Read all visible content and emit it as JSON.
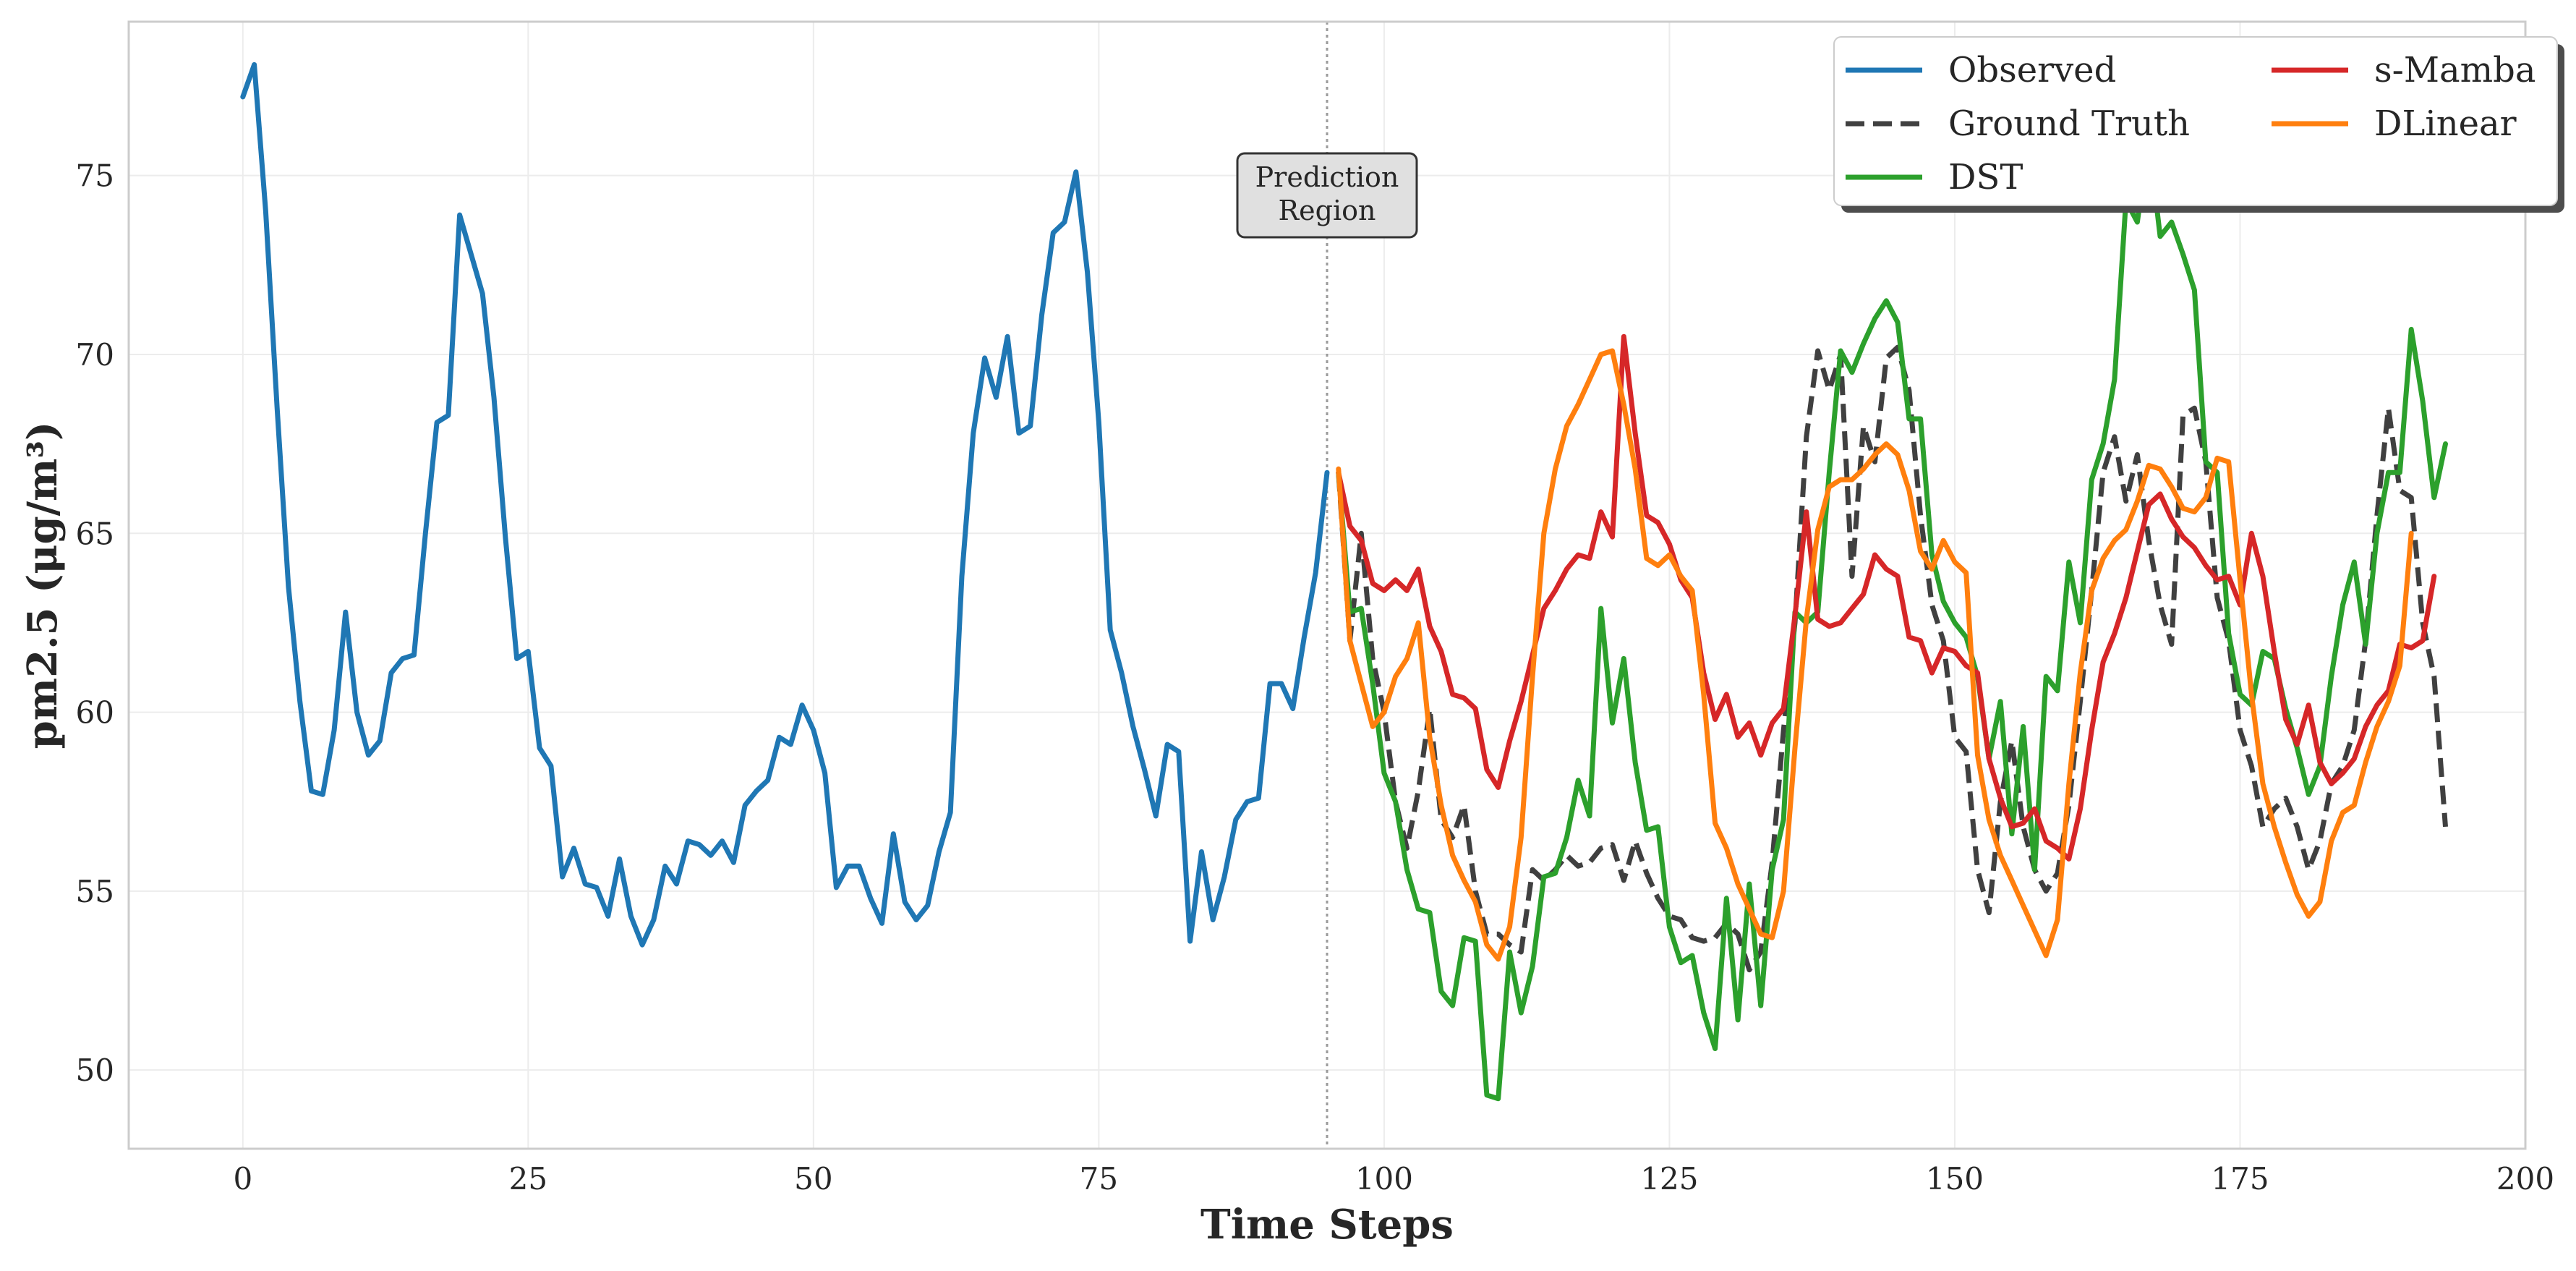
{
  "chart_data": {
    "type": "line",
    "xlabel": "Time Steps",
    "ylabel": "pm2.5 (μg/m³)",
    "xlim": [
      -10,
      200
    ],
    "ylim": [
      47.8,
      79.3
    ],
    "x_ticks": [
      0,
      25,
      50,
      75,
      100,
      125,
      150,
      175,
      200
    ],
    "y_ticks": [
      50,
      55,
      60,
      65,
      70,
      75
    ],
    "grid": true,
    "legend_position": "top-right",
    "legend_columns": 2,
    "annotation": {
      "text_lines": [
        "Prediction",
        "Region"
      ],
      "x": 95
    },
    "prediction_start_x": 95,
    "series": [
      {
        "name": "Observed",
        "color": "#1f77b4",
        "dash": "solid",
        "x_start": 0,
        "values": [
          77.2,
          78.1,
          74,
          68.5,
          63.5,
          60.3,
          57.8,
          57.7,
          59.5,
          62.8,
          60,
          58.8,
          59.2,
          61.1,
          61.5,
          61.6,
          65,
          68.1,
          68.3,
          73.9,
          72.8,
          71.7,
          68.8,
          64.9,
          61.5,
          61.7,
          59,
          58.5,
          55.4,
          56.2,
          55.2,
          55.1,
          54.3,
          55.9,
          54.3,
          53.5,
          54.2,
          55.7,
          55.2,
          56.4,
          56.3,
          56,
          56.4,
          55.8,
          57.4,
          57.8,
          58.1,
          59.3,
          59.1,
          60.2,
          59.5,
          58.3,
          55.1,
          55.7,
          55.7,
          54.8,
          54.1,
          56.6,
          54.7,
          54.2,
          54.6,
          56.1,
          57.2,
          63.8,
          67.8,
          69.9,
          68.8,
          70.5,
          67.8,
          68,
          71.1,
          73.4,
          73.7,
          75.1,
          72.3,
          68.1,
          62.3,
          61.1,
          59.6,
          58.4,
          57.1,
          59.1,
          58.9,
          53.6,
          56.1,
          54.2,
          55.4,
          57,
          57.5,
          57.6,
          60.8,
          60.8,
          60.1,
          62.1,
          63.9,
          66.7
        ]
      },
      {
        "name": "Ground Truth",
        "color": "#404040",
        "dash": "dashed",
        "x_start": 96,
        "values": [
          66.7,
          62,
          65,
          61.5,
          60,
          57.5,
          56.2,
          57.8,
          60.1,
          57,
          56.5,
          57.4,
          55,
          53.8,
          53.8,
          53.5,
          53.3,
          55.6,
          55.3,
          55.6,
          56,
          55.7,
          55.8,
          56.2,
          56.3,
          55.3,
          56.4,
          55.5,
          54.8,
          54.3,
          54.2,
          53.7,
          53.6,
          53.7,
          54.1,
          53.8,
          52.8,
          53.3,
          55.8,
          59.5,
          62.5,
          67.7,
          70.1,
          69,
          70,
          63.8,
          68,
          67,
          69.9,
          70.2,
          69,
          65.5,
          63,
          62,
          59.3,
          58.9,
          55.6,
          54.4,
          57.5,
          59.2,
          56.8,
          55.6,
          55,
          55.5,
          57.4,
          60.3,
          63.4,
          66.7,
          67.7,
          65.9,
          67.2,
          64.8,
          63,
          61.9,
          68.3,
          68.5,
          67,
          63.2,
          62,
          59.5,
          58.5,
          56.8,
          57.3,
          57.6,
          56.8,
          55.6,
          56.4,
          58,
          58.5,
          59.5,
          62,
          65.5,
          68.5,
          66.2,
          66,
          62.5,
          61,
          56.8
        ]
      },
      {
        "name": "DST",
        "color": "#2ca02c",
        "dash": "solid",
        "x_start": 96,
        "values": [
          66.7,
          62.8,
          62.9,
          60.8,
          58.3,
          57.5,
          55.6,
          54.5,
          54.4,
          52.2,
          51.8,
          53.7,
          53.6,
          49.3,
          49.2,
          53.3,
          51.6,
          52.9,
          55.4,
          55.5,
          56.5,
          58.1,
          57.1,
          62.9,
          59.7,
          61.5,
          58.6,
          56.7,
          56.8,
          54,
          53,
          53.2,
          51.6,
          50.6,
          54.8,
          51.4,
          55.2,
          51.8,
          55.6,
          57,
          62.8,
          62.5,
          62.8,
          66.7,
          70.1,
          69.5,
          70.3,
          71,
          71.5,
          70.9,
          68.2,
          68.2,
          64.4,
          63.1,
          62.5,
          62.1,
          61,
          58.7,
          60.3,
          56.6,
          59.6,
          55.6,
          61,
          60.6,
          64.2,
          62.5,
          66.5,
          67.5,
          69.3,
          74.3,
          73.7,
          76,
          73.3,
          73.7,
          72.8,
          71.8,
          67,
          66.7,
          62.2,
          60.5,
          60.2,
          61.7,
          61.5,
          60.1,
          59,
          57.7,
          58.5,
          61,
          63,
          64.2,
          61.9,
          65,
          66.7,
          66.7,
          70.7,
          68.7,
          66,
          67.5
        ]
      },
      {
        "name": "s-Mamba",
        "color": "#d62728",
        "dash": "solid",
        "x_start": 96,
        "values": [
          66.7,
          65.2,
          64.8,
          63.6,
          63.4,
          63.7,
          63.4,
          64,
          62.4,
          61.7,
          60.5,
          60.4,
          60.1,
          58.4,
          57.9,
          59.2,
          60.3,
          61.6,
          62.9,
          63.4,
          64,
          64.4,
          64.3,
          65.6,
          64.9,
          70.5,
          67.8,
          65.5,
          65.3,
          64.7,
          63.7,
          63.2,
          61.1,
          59.8,
          60.5,
          59.3,
          59.7,
          58.8,
          59.7,
          60.1,
          62.7,
          65.6,
          62.6,
          62.4,
          62.5,
          62.9,
          63.3,
          64.4,
          64,
          63.8,
          62.1,
          62,
          61.1,
          61.8,
          61.7,
          61.3,
          61.1,
          58.7,
          57.6,
          56.8,
          56.9,
          57.3,
          56.4,
          56.2,
          55.9,
          57.3,
          59.5,
          61.4,
          62.2,
          63.2,
          64.5,
          65.8,
          66.1,
          65.4,
          64.9,
          64.6,
          64.1,
          63.7,
          63.8,
          63,
          65,
          63.8,
          61.7,
          59.8,
          59.1,
          60.2,
          58.6,
          58,
          58.3,
          58.7,
          59.6,
          60.2,
          60.6,
          61.9,
          61.8,
          62,
          63.8
        ]
      },
      {
        "name": "DLinear",
        "color": "#ff7f0e",
        "dash": "solid",
        "x_start": 96,
        "values": [
          66.8,
          62,
          60.8,
          59.6,
          60,
          61,
          61.5,
          62.5,
          59.3,
          57.4,
          56,
          55.3,
          54.7,
          53.5,
          53.1,
          54,
          56.5,
          61,
          65,
          66.8,
          68,
          68.6,
          69.3,
          70,
          70.1,
          68.6,
          66.8,
          64.3,
          64.1,
          64.4,
          63.8,
          63.4,
          60.5,
          56.9,
          56.2,
          55.2,
          54.5,
          53.8,
          53.7,
          55,
          59,
          62.6,
          65.1,
          66.3,
          66.5,
          66.5,
          66.8,
          67.2,
          67.5,
          67.2,
          66.2,
          64.5,
          64,
          64.8,
          64.2,
          63.9,
          58.8,
          57,
          56,
          55.3,
          54.6,
          53.9,
          53.2,
          54.2,
          58,
          61.1,
          63.4,
          64.3,
          64.8,
          65.1,
          65.9,
          66.9,
          66.8,
          66.3,
          65.7,
          65.6,
          66,
          67.1,
          67,
          63.7,
          60.5,
          58,
          56.8,
          55.8,
          54.9,
          54.3,
          54.7,
          56.4,
          57.2,
          57.4,
          58.6,
          59.6,
          60.3,
          61.3,
          65
        ]
      }
    ]
  }
}
